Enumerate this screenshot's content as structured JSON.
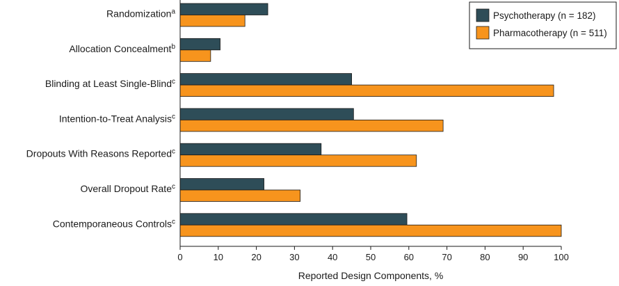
{
  "chart_data": {
    "type": "bar",
    "orientation": "horizontal",
    "categories": [
      "Randomization",
      "Allocation Concealment",
      "Blinding at Least Single-Blind",
      "Intention-to-Treat Analysis",
      "Dropouts With Reasons Reported",
      "Overall Dropout Rate",
      "Contemporaneous Controls"
    ],
    "category_superscripts": [
      "a",
      "b",
      "c",
      "c",
      "c",
      "c",
      "c"
    ],
    "series": [
      {
        "name": "Psychotherapy (n = 182)",
        "color": "#2e4d58",
        "values": [
          23,
          10.5,
          45,
          45.5,
          37,
          22,
          59.5
        ]
      },
      {
        "name": "Pharmacotherapy (n = 511)",
        "color": "#f7941d",
        "values": [
          17,
          8,
          98,
          69,
          62,
          31.5,
          100
        ]
      }
    ],
    "xlabel": "Reported Design Components, %",
    "ylabel": "",
    "xlim": [
      0,
      100
    ],
    "xticks": [
      0,
      10,
      20,
      30,
      40,
      50,
      60,
      70,
      80,
      90,
      100
    ],
    "grid": false,
    "legend_position": "top-right"
  }
}
